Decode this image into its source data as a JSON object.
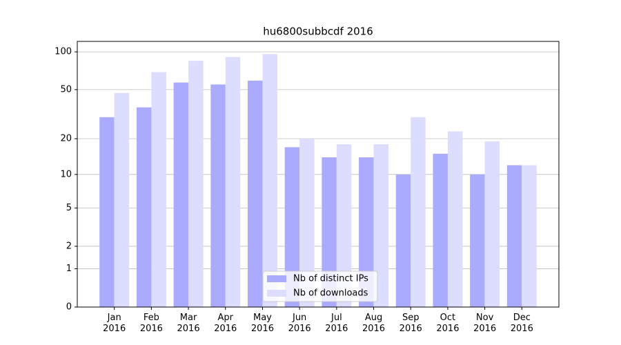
{
  "chart_data": {
    "type": "bar",
    "title": "hu6800subbcdf 2016",
    "categories": [
      "Jan\n2016",
      "Feb\n2016",
      "Mar\n2016",
      "Apr\n2016",
      "May\n2016",
      "Jun\n2016",
      "Jul\n2016",
      "Aug\n2016",
      "Sep\n2016",
      "Oct\n2016",
      "Nov\n2016",
      "Dec\n2016"
    ],
    "series": [
      {
        "name": "Nb of distinct IPs",
        "color": "#aaaaff",
        "values": [
          30,
          36,
          57,
          55,
          59,
          17,
          14,
          14,
          10,
          15,
          10,
          12
        ]
      },
      {
        "name": "Nb of downloads",
        "color": "#ddddff",
        "values": [
          47,
          69,
          85,
          91,
          96,
          20,
          18,
          18,
          30,
          23,
          19,
          12
        ]
      }
    ],
    "scale": "log1p",
    "ylim": [
      0,
      121
    ],
    "yticks": [
      0,
      1,
      2,
      5,
      10,
      20,
      50,
      100
    ],
    "grid": true,
    "legend": "lower center"
  }
}
